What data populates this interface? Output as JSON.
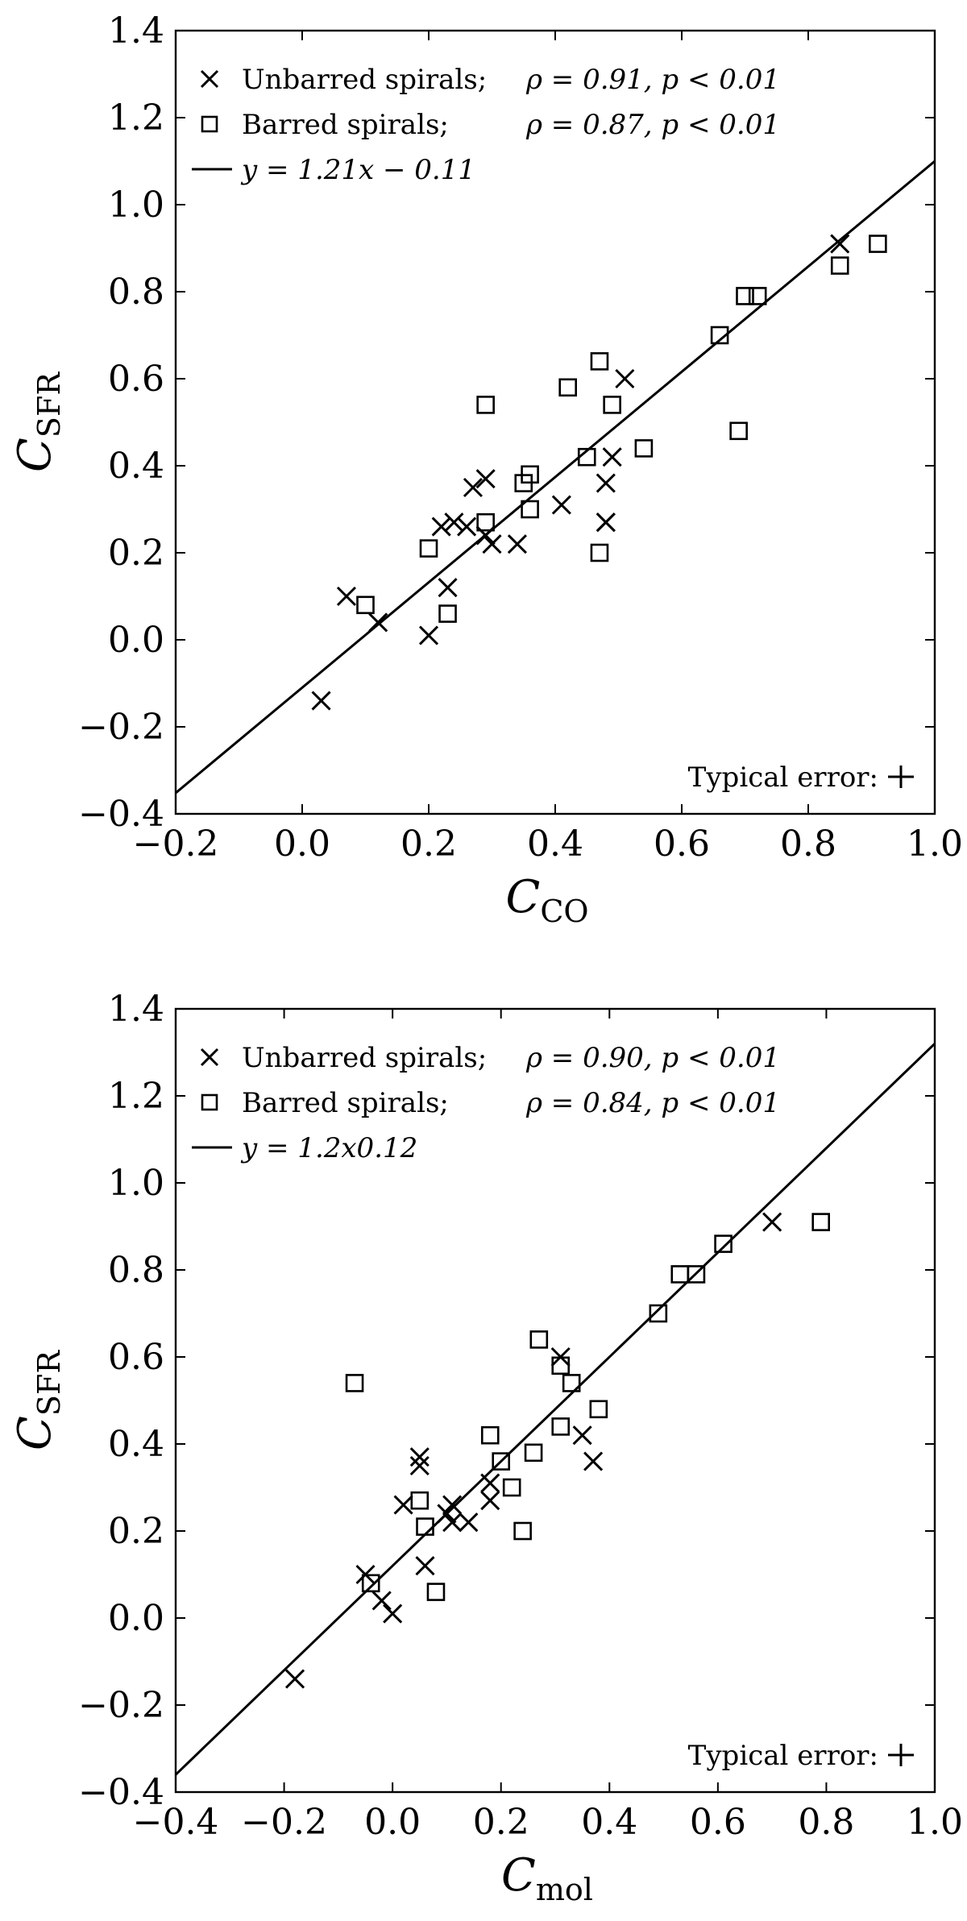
{
  "chart_data": [
    {
      "type": "scatter",
      "xlabel": "C",
      "xlabel_sub": "CO",
      "ylabel": "C",
      "ylabel_sub": "SFR",
      "xlim": [
        -0.2,
        1.0
      ],
      "ylim": [
        -0.4,
        1.4
      ],
      "xticks": [
        "−0.2",
        "0.0",
        "0.2",
        "0.4",
        "0.6",
        "0.8",
        "1.0"
      ],
      "xtick_values": [
        -0.2,
        0.0,
        0.2,
        0.4,
        0.6,
        0.8,
        1.0
      ],
      "yticks": [
        "−0.4",
        "−0.2",
        "0.0",
        "0.2",
        "0.4",
        "0.6",
        "0.8",
        "1.0",
        "1.2",
        "1.4"
      ],
      "ytick_values": [
        -0.4,
        -0.2,
        0.0,
        0.2,
        0.4,
        0.6,
        0.8,
        1.0,
        1.2,
        1.4
      ],
      "legend": [
        {
          "marker": "x",
          "label": "Unbarred spirals;",
          "stat": "ρ = 0.91, p < 0.01"
        },
        {
          "marker": "square",
          "label": "Barred spirals;",
          "stat": "ρ = 0.87, p < 0.01"
        },
        {
          "marker": "line",
          "label": "y = 1.21x − 0.11"
        }
      ],
      "fit": {
        "slope": 1.21,
        "intercept": -0.11
      },
      "annotation": "Typical error:",
      "series": [
        {
          "name": "Unbarred spirals",
          "marker": "x",
          "x": [
            0.03,
            0.07,
            0.12,
            0.2,
            0.22,
            0.23,
            0.24,
            0.26,
            0.27,
            0.29,
            0.29,
            0.3,
            0.34,
            0.41,
            0.48,
            0.48,
            0.48,
            0.49,
            0.51,
            0.85
          ],
          "y": [
            -0.14,
            0.1,
            0.04,
            0.01,
            0.26,
            0.12,
            0.27,
            0.26,
            0.35,
            0.37,
            0.24,
            0.22,
            0.22,
            0.31,
            0.36,
            0.27,
            0.27,
            0.42,
            0.6,
            0.91
          ]
        },
        {
          "name": "Barred spirals",
          "marker": "square",
          "x": [
            0.1,
            0.2,
            0.23,
            0.29,
            0.29,
            0.35,
            0.36,
            0.36,
            0.42,
            0.45,
            0.47,
            0.47,
            0.49,
            0.54,
            0.66,
            0.69,
            0.7,
            0.72,
            0.85,
            0.91
          ],
          "y": [
            0.08,
            0.21,
            0.06,
            0.54,
            0.27,
            0.36,
            0.38,
            0.3,
            0.58,
            0.42,
            0.64,
            0.2,
            0.54,
            0.44,
            0.7,
            0.48,
            0.79,
            0.79,
            0.86,
            0.91
          ]
        }
      ]
    },
    {
      "type": "scatter",
      "xlabel": "C",
      "xlabel_sub": "mol",
      "ylabel": "C",
      "ylabel_sub": "SFR",
      "xlim": [
        -0.4,
        1.0
      ],
      "ylim": [
        -0.4,
        1.4
      ],
      "xticks": [
        "−0.4",
        "−0.2",
        "0.0",
        "0.2",
        "0.4",
        "0.6",
        "0.8",
        "1.0"
      ],
      "xtick_values": [
        -0.4,
        -0.2,
        0.0,
        0.2,
        0.4,
        0.6,
        0.8,
        1.0
      ],
      "yticks": [
        "−0.4",
        "−0.2",
        "0.0",
        "0.2",
        "0.4",
        "0.6",
        "0.8",
        "1.0",
        "1.2",
        "1.4"
      ],
      "ytick_values": [
        -0.4,
        -0.2,
        0.0,
        0.2,
        0.4,
        0.6,
        0.8,
        1.0,
        1.2,
        1.4
      ],
      "legend": [
        {
          "marker": "x",
          "label": "Unbarred spirals;",
          "stat": "ρ = 0.90, p < 0.01"
        },
        {
          "marker": "square",
          "label": "Barred spirals;",
          "stat": "ρ = 0.84, p < 0.01"
        },
        {
          "marker": "line",
          "label": "y = 1.2x0.12"
        }
      ],
      "fit": {
        "slope": 1.2,
        "intercept": 0.12
      },
      "annotation": "Typical error:",
      "series": [
        {
          "name": "Unbarred spirals",
          "marker": "x",
          "x": [
            -0.18,
            -0.05,
            -0.02,
            0.0,
            0.02,
            0.05,
            0.05,
            0.06,
            0.1,
            0.11,
            0.11,
            0.14,
            0.18,
            0.18,
            0.31,
            0.35,
            0.37,
            0.7
          ],
          "y": [
            -0.14,
            0.1,
            0.04,
            0.01,
            0.26,
            0.37,
            0.35,
            0.12,
            0.24,
            0.26,
            0.22,
            0.22,
            0.27,
            0.31,
            0.6,
            0.42,
            0.36,
            0.91
          ]
        },
        {
          "name": "Barred spirals",
          "marker": "square",
          "x": [
            -0.07,
            -0.04,
            0.05,
            0.06,
            0.08,
            0.18,
            0.2,
            0.22,
            0.24,
            0.26,
            0.27,
            0.31,
            0.31,
            0.33,
            0.38,
            0.49,
            0.53,
            0.56,
            0.61,
            0.79
          ],
          "y": [
            0.54,
            0.08,
            0.27,
            0.21,
            0.06,
            0.42,
            0.36,
            0.3,
            0.2,
            0.38,
            0.64,
            0.58,
            0.44,
            0.54,
            0.48,
            0.7,
            0.79,
            0.79,
            0.86,
            0.91
          ]
        }
      ]
    }
  ]
}
